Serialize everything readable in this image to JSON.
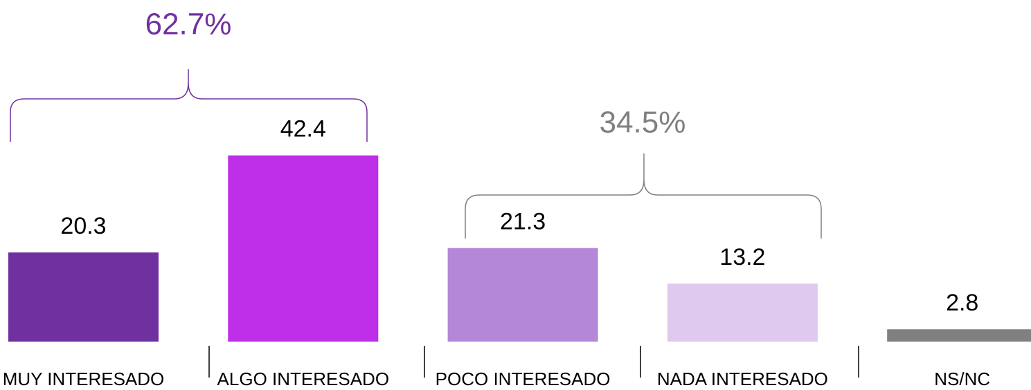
{
  "chart_data": {
    "type": "bar",
    "categories": [
      "MUY INTERESADO",
      "ALGO INTERESADO",
      "POCO INTERESADO",
      "NADA INTERESADO",
      "NS/NC"
    ],
    "values": [
      20.3,
      42.4,
      21.3,
      13.2,
      2.8
    ],
    "colors": [
      "#7030a0",
      "#bf2ee8",
      "#b587d9",
      "#e0c9ee",
      "#808080"
    ],
    "annotations": [
      "62.7%",
      "34.5%"
    ]
  }
}
